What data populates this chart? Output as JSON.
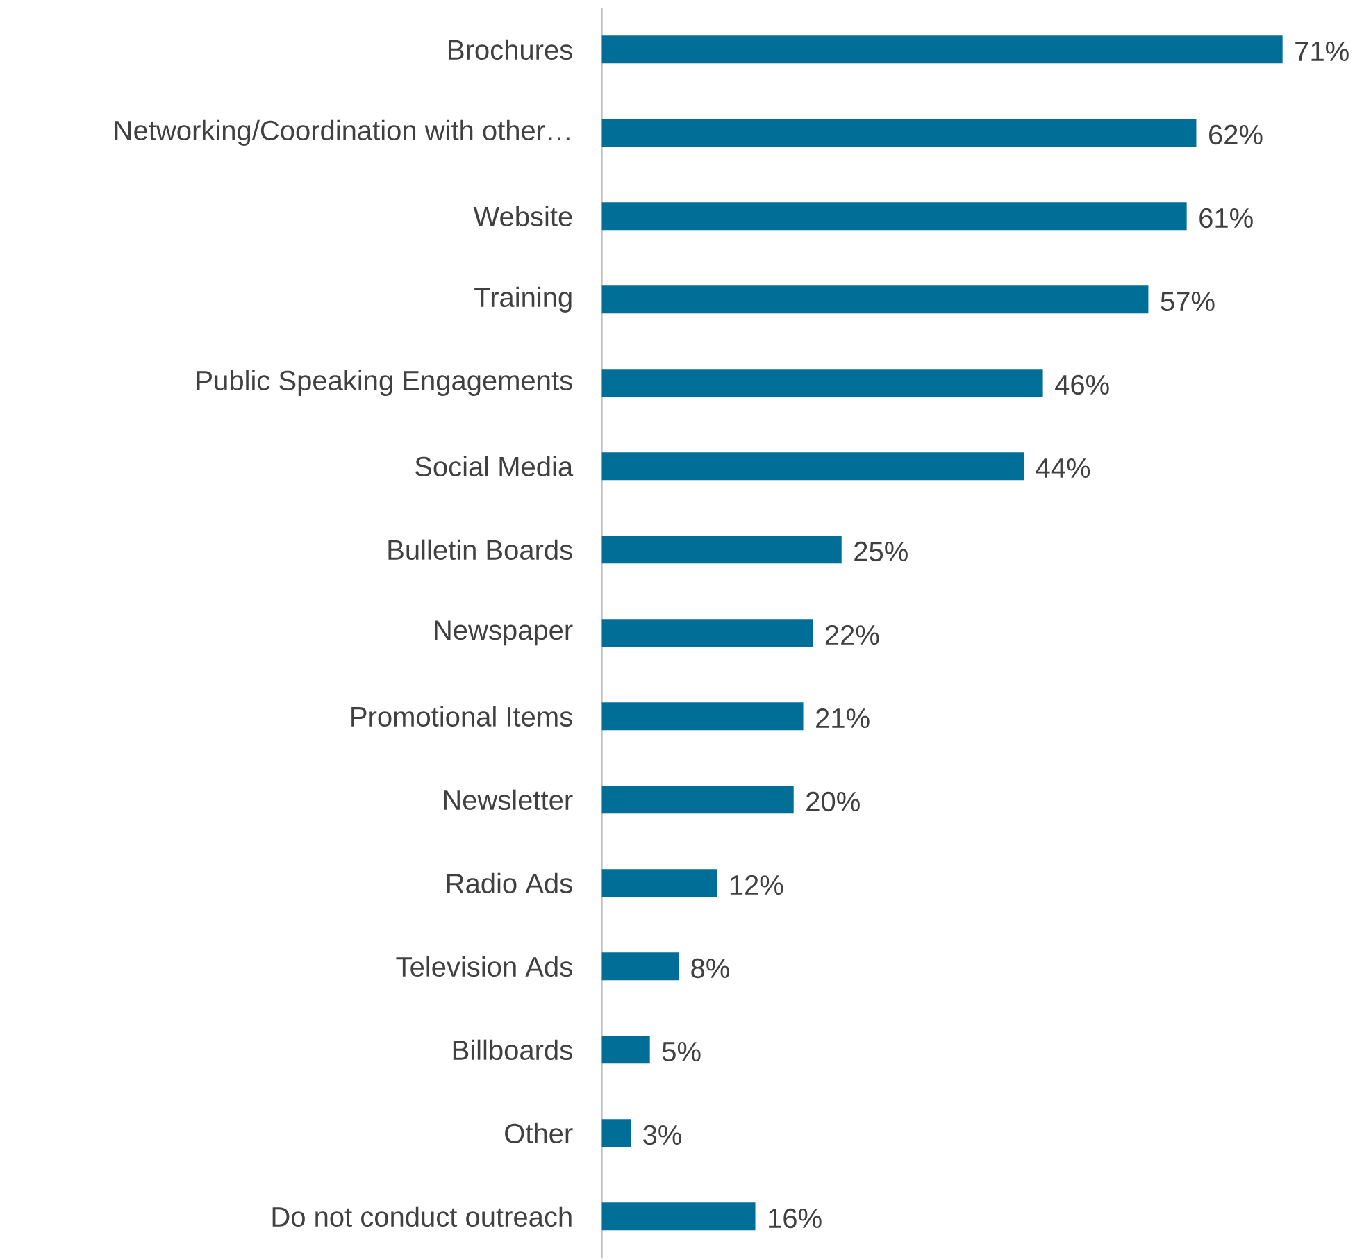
{
  "chart_data": {
    "type": "bar",
    "orientation": "horizontal",
    "color": "#006e96",
    "categories": [
      "Brochures",
      "Networking/Coordination with other…",
      "Website",
      "Training",
      "Public Speaking Engagements",
      "Social Media",
      "Bulletin Boards",
      "Newspaper",
      "Promotional Items",
      "Newsletter",
      "Radio Ads",
      "Television Ads",
      "Billboards",
      "Other",
      "Do not conduct outreach"
    ],
    "values": [
      71,
      62,
      61,
      57,
      46,
      44,
      25,
      22,
      21,
      20,
      12,
      8,
      5,
      3,
      16
    ],
    "value_labels": [
      "71%",
      "62%",
      "61%",
      "57%",
      "46%",
      "44%",
      "25%",
      "22%",
      "21%",
      "20%",
      "12%",
      "8%",
      "5%",
      "3%",
      "16%"
    ]
  }
}
